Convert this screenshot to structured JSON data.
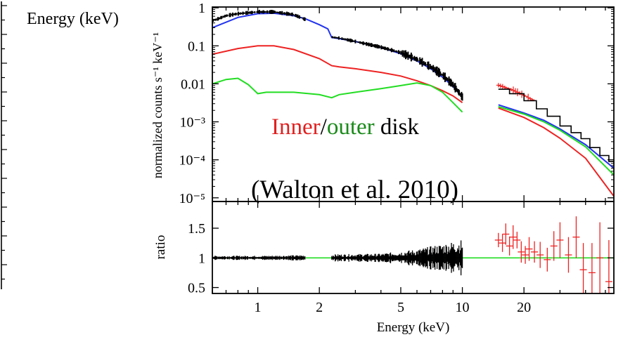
{
  "left_fragment": {
    "label": "Energy (keV)"
  },
  "overlay": {
    "inner": "Inner",
    "slash": "/",
    "outer": "outer",
    "disk": "disk",
    "citation": "(Walton et al. 2010)"
  },
  "colors": {
    "black": "#000000",
    "blue": "#2233ee",
    "red": "#ee2222",
    "green": "#22dd22",
    "text_red": "#e02020",
    "text_green": "#1a8a1a"
  },
  "chart_data": [
    {
      "type": "line",
      "panel": "top",
      "xlabel": "",
      "ylabel": "normalized counts s⁻¹ keV⁻¹",
      "xscale": "log",
      "yscale": "log",
      "xlim": [
        0.6,
        55
      ],
      "ylim": [
        8e-06,
        1.05
      ],
      "yticks": [
        {
          "value": 1,
          "label": "1"
        },
        {
          "value": 0.1,
          "label": "0.1"
        },
        {
          "value": 0.01,
          "label": "0.01"
        },
        {
          "value": 0.001,
          "label": "10⁻³"
        },
        {
          "value": 0.0001,
          "label": "10⁻⁴"
        },
        {
          "value": 1e-05,
          "label": "10⁻⁵"
        }
      ],
      "series": [
        {
          "color": "black",
          "style": "data",
          "x": [
            0.6,
            0.7,
            0.8,
            1.0,
            1.2,
            1.5,
            1.7
          ],
          "y": [
            0.45,
            0.62,
            0.7,
            0.78,
            0.78,
            0.66,
            0.5
          ]
        },
        {
          "color": "black",
          "style": "data",
          "x": [
            2.3,
            2.5,
            3,
            4,
            5,
            6,
            7,
            8,
            9,
            10
          ],
          "y": [
            0.17,
            0.16,
            0.13,
            0.092,
            0.066,
            0.044,
            0.028,
            0.017,
            0.0095,
            0.0045
          ]
        },
        {
          "color": "black",
          "style": "step",
          "x": [
            15,
            17,
            20,
            23,
            26,
            30,
            34,
            38,
            42,
            47,
            52,
            55
          ],
          "y": [
            0.0072,
            0.0055,
            0.0036,
            0.0022,
            0.0014,
            0.00078,
            0.00052,
            0.00036,
            0.00021,
            0.00013,
            9e-05,
            8e-05
          ]
        },
        {
          "color": "red",
          "style": "data",
          "x": [
            15,
            16.5,
            18,
            20,
            22
          ],
          "y": [
            0.0092,
            0.0078,
            0.0065,
            0.005,
            0.0038
          ]
        },
        {
          "color": "blue",
          "style": "line",
          "x": [
            0.6,
            0.8,
            1.0,
            1.2,
            1.5,
            1.7,
            2.0,
            2.2,
            2.3,
            2.5,
            3,
            4,
            5,
            6,
            7,
            8,
            9,
            10
          ],
          "y": [
            0.3,
            0.56,
            0.7,
            0.72,
            0.62,
            0.52,
            0.36,
            0.28,
            0.165,
            0.155,
            0.13,
            0.09,
            0.062,
            0.04,
            0.025,
            0.015,
            0.0085,
            0.0045
          ]
        },
        {
          "color": "blue",
          "style": "line",
          "x": [
            15,
            20,
            25,
            30,
            40,
            55
          ],
          "y": [
            0.0028,
            0.0017,
            0.0011,
            0.00065,
            0.00025,
            6e-05
          ]
        },
        {
          "color": "red",
          "style": "line",
          "x": [
            0.6,
            0.8,
            1.0,
            1.2,
            1.5,
            2.0,
            2.3,
            2.5,
            3,
            4,
            5,
            6,
            7,
            8,
            9,
            10
          ],
          "y": [
            0.06,
            0.085,
            0.1,
            0.1,
            0.08,
            0.046,
            0.03,
            0.028,
            0.025,
            0.02,
            0.016,
            0.012,
            0.009,
            0.0066,
            0.0048,
            0.0032
          ]
        },
        {
          "color": "red",
          "style": "line",
          "x": [
            15,
            20,
            25,
            30,
            40,
            55
          ],
          "y": [
            0.0023,
            0.0013,
            0.0007,
            0.00037,
            0.00011,
            1.1e-05
          ]
        },
        {
          "color": "green",
          "style": "line",
          "x": [
            0.6,
            0.7,
            0.8,
            0.9,
            1.0,
            1.1,
            1.5,
            2.0,
            2.3,
            2.5,
            3,
            4,
            5,
            6,
            7,
            8,
            9,
            10
          ],
          "y": [
            0.01,
            0.013,
            0.014,
            0.0095,
            0.0055,
            0.006,
            0.006,
            0.0052,
            0.0043,
            0.0052,
            0.006,
            0.0075,
            0.009,
            0.0105,
            0.009,
            0.006,
            0.0032,
            0.0018
          ]
        },
        {
          "color": "green",
          "style": "line",
          "x": [
            15,
            20,
            25,
            30,
            40,
            55
          ],
          "y": [
            0.0025,
            0.0016,
            0.001,
            0.0006,
            0.00022,
            4e-05
          ]
        }
      ]
    },
    {
      "type": "line",
      "panel": "bottom",
      "xlabel": "Energy (keV)",
      "ylabel": "ratio",
      "xscale": "log",
      "xlim": [
        0.6,
        55
      ],
      "ylim": [
        0.4,
        1.95
      ],
      "xticks": [
        {
          "value": 1,
          "label": "1"
        },
        {
          "value": 2,
          "label": "2"
        },
        {
          "value": 5,
          "label": "5"
        },
        {
          "value": 10,
          "label": "10"
        },
        {
          "value": 20,
          "label": "20"
        }
      ],
      "yticks": [
        {
          "value": 0.5,
          "label": "0.5"
        },
        {
          "value": 1,
          "label": "1"
        },
        {
          "value": 1.5,
          "label": "1.5"
        }
      ],
      "reference_line": {
        "y": 1,
        "color": "green"
      },
      "series": [
        {
          "color": "black",
          "style": "noisy",
          "x": [
            0.6,
            1.0,
            1.7
          ],
          "y": [
            1.0,
            1.0,
            1.0
          ],
          "amplitude": [
            0.03,
            0.03,
            0.04
          ]
        },
        {
          "color": "black",
          "style": "noisy",
          "x": [
            2.3,
            4,
            6,
            8,
            10
          ],
          "y": [
            1.0,
            1.0,
            1.0,
            1.0,
            1.0
          ],
          "amplitude": [
            0.05,
            0.06,
            0.12,
            0.2,
            0.26
          ]
        },
        {
          "color": "red",
          "style": "points",
          "x": [
            15,
            15.7,
            16.3,
            17,
            17.7,
            18.5,
            19.4,
            20.3,
            21.2,
            22.5,
            24,
            26,
            28,
            30,
            33,
            36,
            39,
            43,
            47,
            52
          ],
          "y": [
            1.3,
            1.25,
            1.4,
            1.2,
            1.35,
            1.3,
            1.1,
            1.05,
            1.15,
            1.1,
            1.05,
            0.97,
            1.2,
            1.3,
            1.05,
            1.35,
            0.8,
            0.75,
            1.0,
            0.6
          ],
          "err": [
            0.12,
            0.15,
            0.18,
            0.16,
            0.2,
            0.14,
            0.18,
            0.15,
            0.2,
            0.18,
            0.22,
            0.2,
            0.25,
            0.3,
            0.3,
            0.35,
            0.45,
            0.5,
            0.6,
            0.7
          ]
        }
      ]
    }
  ]
}
